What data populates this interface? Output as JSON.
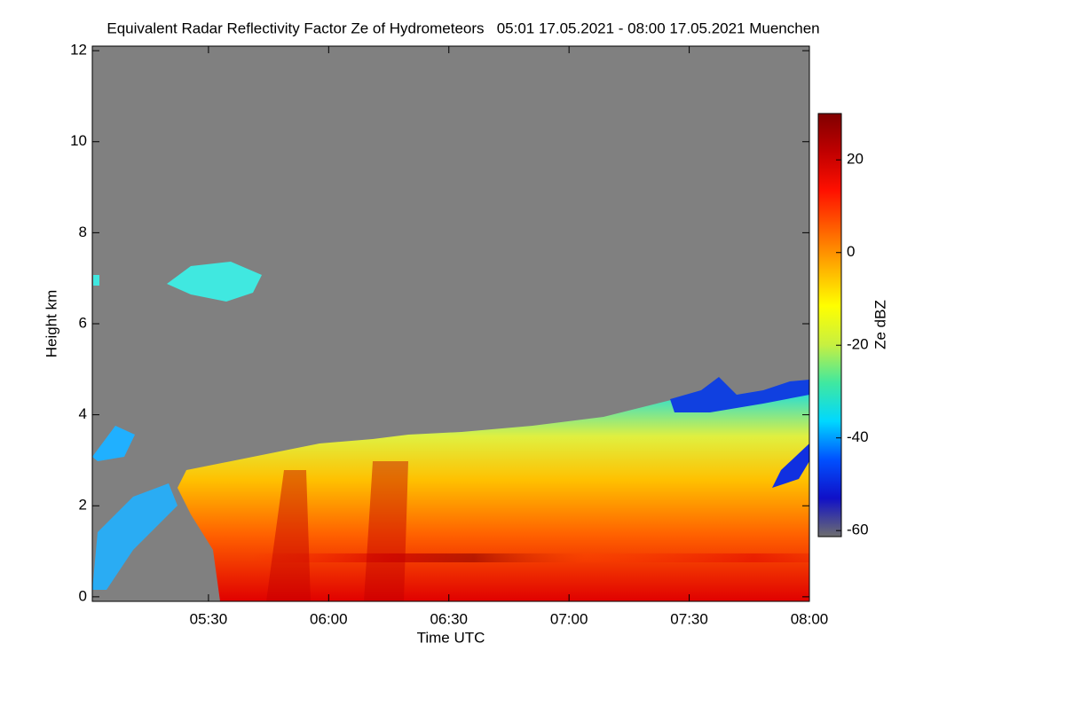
{
  "chart_data": {
    "type": "heatmap",
    "title": "Equivalent Radar Reflectivity Factor Ze of Hydrometeors   05:01 17.05.2021 - 08:00 17.05.2021 Muenchen",
    "x_label": "Time UTC",
    "y_label": "Height km",
    "xlim": [
      301,
      480
    ],
    "xticks": [
      {
        "value": 330,
        "label": "05:30"
      },
      {
        "value": 360,
        "label": "06:00"
      },
      {
        "value": 390,
        "label": "06:30"
      },
      {
        "value": 420,
        "label": "07:00"
      },
      {
        "value": 450,
        "label": "07:30"
      },
      {
        "value": 480,
        "label": "08:00"
      }
    ],
    "ylim": [
      -0.1,
      12.1
    ],
    "yticks": [
      0,
      2,
      4,
      6,
      8,
      10,
      12
    ],
    "colorbar": {
      "label": "Ze dBZ",
      "lim": [
        -61.3,
        30
      ],
      "ticks": [
        -60,
        -40,
        -20,
        0,
        20
      ],
      "colors": [
        "#6e6e6e",
        "#1010c8",
        "#0050ff",
        "#00d8ff",
        "#40e8a0",
        "#c8f040",
        "#ffff00",
        "#ffb000",
        "#ff6000",
        "#ff1000",
        "#c00000",
        "#800000"
      ]
    },
    "background_color": "#808080"
  }
}
